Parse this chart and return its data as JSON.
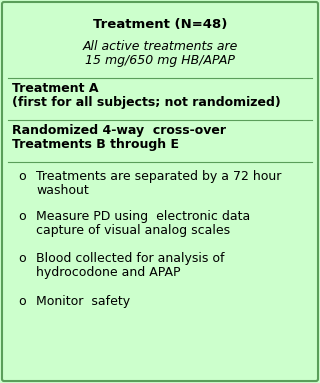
{
  "bg_color": "#ccffcc",
  "border_color": "#5a9e5a",
  "title": "Treatment (N=48)",
  "subtitle_line1": "All active treatments are",
  "subtitle_line2": "15 mg/650 mg HB/APAP",
  "section1_line1": "Treatment A",
  "section1_line2": "(first for all subjects; not randomized)",
  "section2_line1": "Randomized 4-way  cross-over",
  "section2_line2": "Treatments B through E",
  "bullets": [
    [
      "Treatments are separated by a 72 hour",
      "washout"
    ],
    [
      "Measure PD using  electronic data",
      "capture of visual analog scales"
    ],
    [
      "Blood collected for analysis of",
      "hydrocodone and APAP"
    ],
    [
      "Monitor  safety"
    ]
  ],
  "bullet_char": "o",
  "title_fontsize": 9.5,
  "subtitle_fontsize": 9.0,
  "body_fontsize": 9.0,
  "text_color": "#000000"
}
